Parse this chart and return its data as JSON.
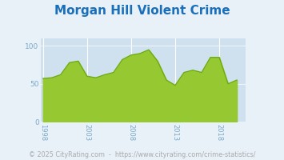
{
  "title": "Morgan Hill Violent Crime",
  "title_color": "#1a6fba",
  "title_fontsize": 11,
  "footer": "© 2025 CityRating.com  -  https://www.cityrating.com/crime-statistics/",
  "footer_color": "#aaaaaa",
  "footer_fontsize": 5.8,
  "years": [
    1998,
    1999,
    2000,
    2001,
    2002,
    2003,
    2004,
    2005,
    2006,
    2007,
    2008,
    2009,
    2010,
    2011,
    2012,
    2013,
    2014,
    2015,
    2016,
    2017,
    2018,
    2019,
    2020
  ],
  "values": [
    57,
    58,
    62,
    78,
    80,
    60,
    58,
    62,
    65,
    82,
    88,
    90,
    95,
    80,
    55,
    48,
    65,
    68,
    65,
    85,
    85,
    50,
    55
  ],
  "fill_color": "#96c832",
  "line_color": "#6aaa10",
  "plot_bg": "#cfe0ee",
  "outer_bg": "#e8f0f8",
  "left_wall_color": "#b8cad8",
  "right_wall_color": "#c0d0de",
  "bottom_floor_color": "#b0c2d0",
  "ytick_color": "#7aaac8",
  "xtick_color": "#7aaac8",
  "grid_color": "#d8e8f5",
  "yticks": [
    0,
    50,
    100
  ],
  "xticks": [
    1998,
    2003,
    2008,
    2013,
    2018
  ],
  "ylim": [
    0,
    110
  ],
  "xlim": [
    1997.8,
    2021.0
  ]
}
